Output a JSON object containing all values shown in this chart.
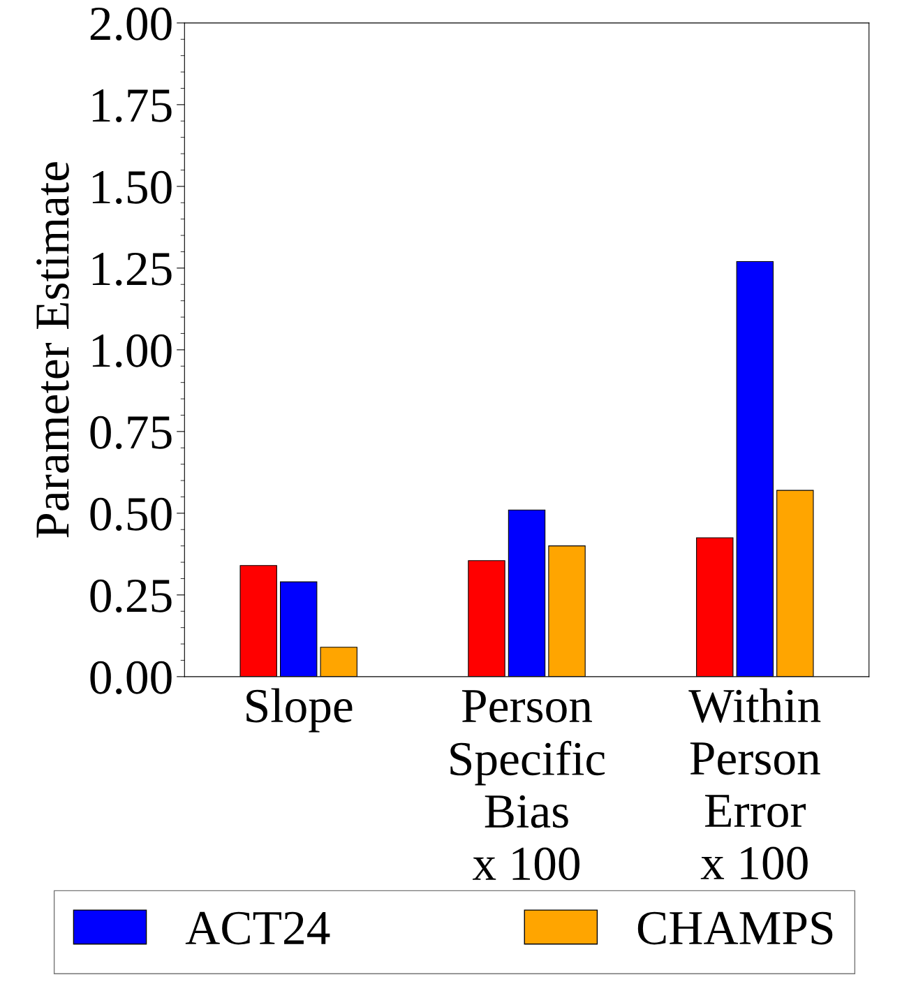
{
  "chart_data": {
    "type": "bar",
    "ylabel": "Parameter Estimate",
    "categories": [
      "Slope",
      "Person\nSpecific\nBias\nx 100",
      "Within\nPerson\nError\nx 100"
    ],
    "series": [
      {
        "color": "#ff0000",
        "values": [
          0.34,
          0.355,
          0.425
        ]
      },
      {
        "name": "ACT24",
        "color": "#0000ff",
        "values": [
          0.29,
          0.51,
          1.27
        ]
      },
      {
        "name": "CHAMPS",
        "color": "#ffa500",
        "values": [
          0.09,
          0.4,
          0.57
        ]
      }
    ],
    "ylim": [
      0,
      2.0
    ],
    "yticks": [
      {
        "value": 0,
        "label": "0.00"
      },
      {
        "value": 0.25,
        "label": "0.25"
      },
      {
        "value": 0.5,
        "label": "0.50"
      },
      {
        "value": 0.75,
        "label": "0.75"
      },
      {
        "value": 1.0,
        "label": "1.00"
      },
      {
        "value": 1.25,
        "label": "1.25"
      },
      {
        "value": 1.5,
        "label": "1.50"
      },
      {
        "value": 1.75,
        "label": "1.75"
      },
      {
        "value": 2.0,
        "label": "2.00"
      }
    ],
    "grid": false,
    "legend": "bottom"
  }
}
